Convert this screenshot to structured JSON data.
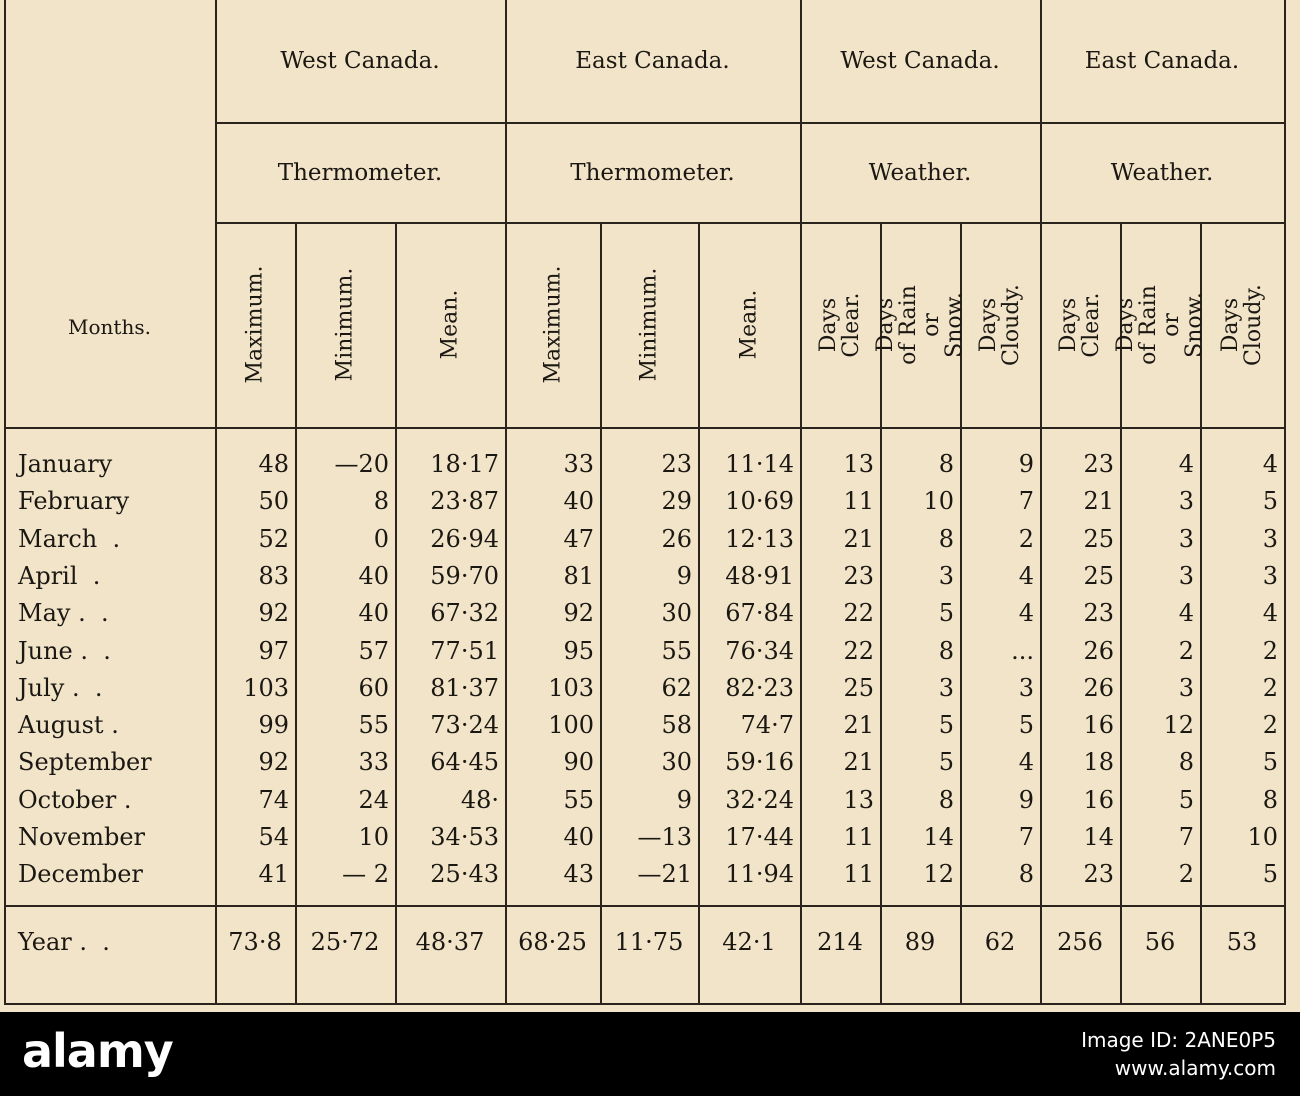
{
  "header": {
    "months_label": "Months.",
    "groups": [
      "West Canada.",
      "East Canada.",
      "West Canada.",
      "East Canada."
    ],
    "subgroups": [
      "Thermometer.",
      "Thermometer.",
      "Weather.",
      "Weather."
    ],
    "columns": [
      "Maximum.",
      "Minimum.",
      "Mean.",
      "Maximum.",
      "Minimum.",
      "Mean.",
      "Days Clear.",
      "Days of Rain or Snow.",
      "Days Cloudy.",
      "Days Clear.",
      "Days of Rain or Snow.",
      "Days Cloudy."
    ]
  },
  "rows": [
    {
      "month": "January",
      "values": [
        "48",
        "—20",
        "18·17",
        "33",
        "23",
        "11·14",
        "13",
        "8",
        "9",
        "23",
        "4",
        "4"
      ]
    },
    {
      "month": "February",
      "values": [
        "50",
        "8",
        "23·87",
        "40",
        "29",
        "10·69",
        "11",
        "10",
        "7",
        "21",
        "3",
        "5"
      ]
    },
    {
      "month": "March  .",
      "values": [
        "52",
        "0",
        "26·94",
        "47",
        "26",
        "12·13",
        "21",
        "8",
        "2",
        "25",
        "3",
        "3"
      ]
    },
    {
      "month": "April  .",
      "values": [
        "83",
        "40",
        "59·70",
        "81",
        "9",
        "48·91",
        "23",
        "3",
        "4",
        "25",
        "3",
        "3"
      ]
    },
    {
      "month": "May .  .",
      "values": [
        "92",
        "40",
        "67·32",
        "92",
        "30",
        "67·84",
        "22",
        "5",
        "4",
        "23",
        "4",
        "4"
      ]
    },
    {
      "month": "June .  .",
      "values": [
        "97",
        "57",
        "77·51",
        "95",
        "55",
        "76·34",
        "22",
        "8",
        "...",
        "26",
        "2",
        "2"
      ]
    },
    {
      "month": "July .  .",
      "values": [
        "103",
        "60",
        "81·37",
        "103",
        "62",
        "82·23",
        "25",
        "3",
        "3",
        "26",
        "3",
        "2"
      ]
    },
    {
      "month": "August .",
      "values": [
        "99",
        "55",
        "73·24",
        "100",
        "58",
        "74·7",
        "21",
        "5",
        "5",
        "16",
        "12",
        "2"
      ]
    },
    {
      "month": "September",
      "values": [
        "92",
        "33",
        "64·45",
        "90",
        "30",
        "59·16",
        "21",
        "5",
        "4",
        "18",
        "8",
        "5"
      ]
    },
    {
      "month": "October .",
      "values": [
        "74",
        "24",
        "48·",
        "55",
        "9",
        "32·24",
        "13",
        "8",
        "9",
        "16",
        "5",
        "8"
      ]
    },
    {
      "month": "November",
      "values": [
        "54",
        "10",
        "34·53",
        "40",
        "—13",
        "17·44",
        "11",
        "14",
        "7",
        "14",
        "7",
        "10"
      ]
    },
    {
      "month": "December",
      "values": [
        "41",
        "— 2",
        "25·43",
        "43",
        "—21",
        "11·94",
        "11",
        "12",
        "8",
        "23",
        "2",
        "5"
      ]
    }
  ],
  "year_row": {
    "month": "Year .  .",
    "values": [
      "73·8",
      "25·72",
      "48·37",
      "68·25",
      "11·75",
      "42·1",
      "214",
      "89",
      "62",
      "256",
      "56",
      "53"
    ]
  },
  "watermark": {
    "logo": "alamy",
    "image_id": "Image ID: 2ANE0P5",
    "url": "www.alamy.com"
  }
}
